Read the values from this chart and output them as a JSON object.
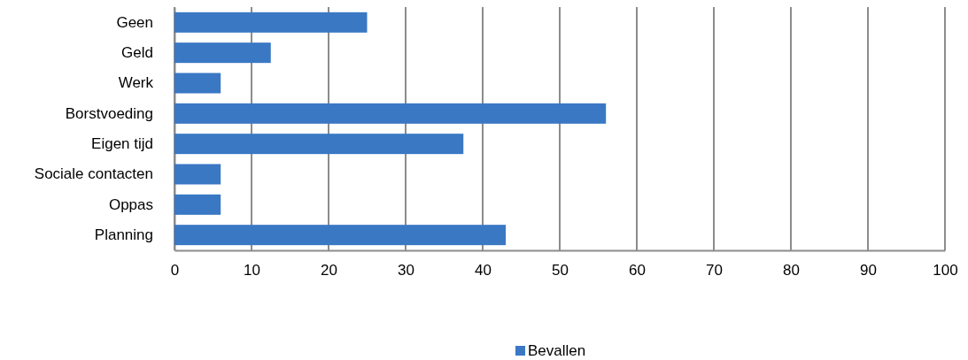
{
  "chart_data": {
    "type": "bar",
    "orientation": "horizontal",
    "categories": [
      "Geen",
      "Geld",
      "Werk",
      "Borstvoeding",
      "Eigen tijd",
      "Sociale contacten",
      "Oppas",
      "Planning"
    ],
    "series": [
      {
        "name": "Bevallen",
        "color": "#3a78c4",
        "values": [
          25,
          12.5,
          6,
          56,
          37.5,
          6,
          6,
          43
        ]
      }
    ],
    "xlim": [
      0,
      100
    ],
    "xticks": [
      0,
      10,
      20,
      30,
      40,
      50,
      60,
      70,
      80,
      90,
      100
    ],
    "grid": "x",
    "legend": "bottom"
  }
}
